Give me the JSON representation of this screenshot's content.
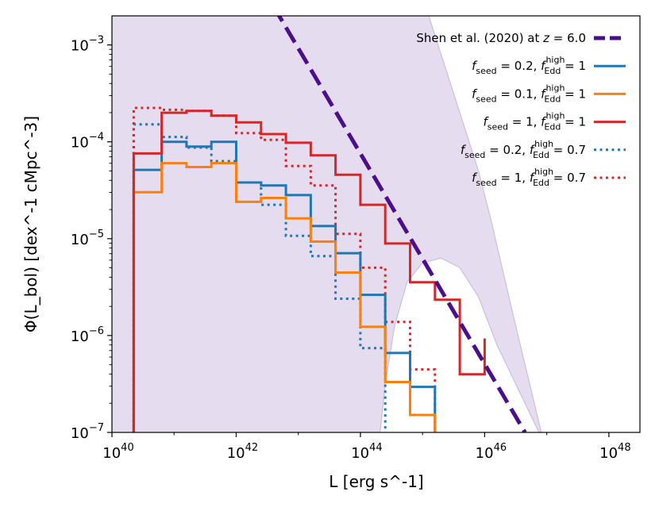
{
  "chart_data": {
    "type": "line",
    "xlabel": "L [erg s^-1]",
    "ylabel": "Φ(L_bol) [dex^-1 cMpc^-3]",
    "x_scale": "log10",
    "y_scale": "log10",
    "xlim_log10": [
      40,
      48.5
    ],
    "ylim_log10": [
      -7,
      -2.7
    ],
    "x_ticks": [
      {
        "value": 40,
        "base": "10",
        "exp": "40"
      },
      {
        "value": 42,
        "base": "10",
        "exp": "42"
      },
      {
        "value": 44,
        "base": "10",
        "exp": "44"
      },
      {
        "value": 46,
        "base": "10",
        "exp": "46"
      },
      {
        "value": 48,
        "base": "10",
        "exp": "48"
      }
    ],
    "y_ticks": [
      {
        "value": -7,
        "base": "10",
        "exp": "−7"
      },
      {
        "value": -6,
        "base": "10",
        "exp": "−6"
      },
      {
        "value": -5,
        "base": "10",
        "exp": "−5"
      },
      {
        "value": -4,
        "base": "10",
        "exp": "−4"
      },
      {
        "value": -3,
        "base": "10",
        "exp": "−3"
      }
    ],
    "shaded_band": {
      "name": "Shen et al. (2020) uncertainty",
      "color": "#e6dcef",
      "edge": "#cdbde0",
      "upper_log10": [
        [
          40,
          -2.6
        ],
        [
          45.05,
          -2.6
        ],
        [
          45.2,
          -2.9
        ],
        [
          45.5,
          -3.5
        ],
        [
          45.9,
          -4.3
        ],
        [
          46.1,
          -4.8
        ],
        [
          46.5,
          -5.9
        ],
        [
          46.95,
          -7.1
        ]
      ],
      "lower_log10": [
        [
          46.95,
          -7.1
        ],
        [
          46.2,
          -6.1
        ],
        [
          45.9,
          -5.6
        ],
        [
          45.6,
          -5.3
        ],
        [
          45.3,
          -5.2
        ],
        [
          45.0,
          -5.25
        ],
        [
          44.75,
          -5.45
        ],
        [
          44.55,
          -5.9
        ],
        [
          44.4,
          -6.5
        ],
        [
          44.3,
          -7.1
        ],
        [
          40,
          -7.1
        ]
      ]
    },
    "series": [
      {
        "name": "Shen et al. (2020) at z = 6.0",
        "color": "#4b0f8c",
        "style": "dashed",
        "kind": "line",
        "points": [
          [
            42.6,
            -2.6
          ],
          [
            46.65,
            -7.0
          ]
        ]
      },
      {
        "name": "f_seed = 0.2, f_Edd^high = 1",
        "color": "#1f77b4",
        "style": "solid",
        "kind": "step",
        "edges": [
          40.35,
          40.8,
          41.2,
          41.6,
          42.0,
          42.4,
          42.8,
          43.2,
          43.6,
          44.0,
          44.4,
          44.8,
          45.2
        ],
        "values": [
          -4.29,
          -4.0,
          -4.05,
          -4.0,
          -4.42,
          -4.45,
          -4.55,
          -4.87,
          -5.15,
          -5.58,
          -6.18,
          -6.53
        ]
      },
      {
        "name": "f_seed = 0.1, f_Edd^high = 1",
        "color": "#ff7f0e",
        "style": "solid",
        "kind": "step",
        "edges": [
          40.35,
          40.8,
          41.2,
          41.6,
          42.0,
          42.4,
          42.8,
          43.2,
          43.6,
          44.0,
          44.4,
          44.8,
          45.2
        ],
        "values": [
          -4.52,
          -4.22,
          -4.26,
          -4.22,
          -4.62,
          -4.58,
          -4.79,
          -5.03,
          -5.35,
          -5.91,
          -6.48,
          -6.82
        ]
      },
      {
        "name": "f_seed = 1, f_Edd^high = 1",
        "color": "#d62728",
        "style": "solid",
        "kind": "step",
        "edges": [
          40.35,
          40.8,
          41.2,
          41.6,
          42.0,
          42.4,
          42.8,
          43.2,
          43.6,
          44.0,
          44.4,
          44.8,
          45.2,
          45.6,
          46.0
        ],
        "values": [
          -4.12,
          -3.7,
          -3.68,
          -3.73,
          -3.8,
          -3.92,
          -4.01,
          -4.14,
          -4.34,
          -4.65,
          -5.05,
          -5.45,
          -5.63,
          -6.4,
          -6.03
        ]
      },
      {
        "name": "f_seed = 0.2, f_Edd^high = 0.7",
        "color": "#1f77b4",
        "style": "dotted",
        "kind": "step",
        "edges": [
          40.35,
          40.8,
          41.2,
          41.6,
          42.0,
          42.4,
          42.8,
          43.2,
          43.6,
          44.0,
          44.4
        ],
        "values": [
          -3.82,
          -3.95,
          -4.06,
          -4.2,
          -4.42,
          -4.65,
          -4.97,
          -5.18,
          -5.62,
          -6.13
        ]
      },
      {
        "name": "f_seed = 1, f_Edd^high = 0.7",
        "color": "#d62728",
        "style": "dotted",
        "kind": "step",
        "edges": [
          40.35,
          40.8,
          41.2,
          41.6,
          42.0,
          42.4,
          42.8,
          43.2,
          43.6,
          44.0,
          44.4,
          44.8,
          45.2
        ],
        "values": [
          -3.65,
          -3.67,
          -3.68,
          -3.73,
          -3.91,
          -3.98,
          -4.25,
          -4.45,
          -4.95,
          -5.3,
          -5.86,
          -6.35
        ]
      }
    ],
    "legend": {
      "position": "top-right",
      "entries": [
        {
          "series": 0,
          "parts": [
            {
              "t": "Shen et al. (2020) at "
            },
            {
              "t": "z",
              "i": true
            },
            {
              "t": " = 6.0"
            }
          ]
        },
        {
          "series": 1,
          "parts": [
            {
              "t": "f",
              "i": true
            },
            {
              "t": "seed",
              "sub": true
            },
            {
              "t": " = 0.2, "
            },
            {
              "t": "f",
              "i": true
            },
            {
              "t": "Edd",
              "sub": true,
              "sup": "high"
            },
            {
              "t": " = 1"
            }
          ]
        },
        {
          "series": 2,
          "parts": [
            {
              "t": "f",
              "i": true
            },
            {
              "t": "seed",
              "sub": true
            },
            {
              "t": " = 0.1, "
            },
            {
              "t": "f",
              "i": true
            },
            {
              "t": "Edd",
              "sub": true,
              "sup": "high"
            },
            {
              "t": " = 1"
            }
          ]
        },
        {
          "series": 3,
          "parts": [
            {
              "t": "f",
              "i": true
            },
            {
              "t": "seed",
              "sub": true
            },
            {
              "t": " = 1, "
            },
            {
              "t": "f",
              "i": true
            },
            {
              "t": "Edd",
              "sub": true,
              "sup": "high"
            },
            {
              "t": " = 1"
            }
          ]
        },
        {
          "series": 4,
          "parts": [
            {
              "t": "f",
              "i": true
            },
            {
              "t": "seed",
              "sub": true
            },
            {
              "t": " = 0.2, "
            },
            {
              "t": "f",
              "i": true
            },
            {
              "t": "Edd",
              "sub": true,
              "sup": "high"
            },
            {
              "t": " = 0.7"
            }
          ]
        },
        {
          "series": 5,
          "parts": [
            {
              "t": "f",
              "i": true
            },
            {
              "t": "seed",
              "sub": true
            },
            {
              "t": " = 1, "
            },
            {
              "t": "f",
              "i": true
            },
            {
              "t": "Edd",
              "sub": true,
              "sup": "high"
            },
            {
              "t": " = 0.7"
            }
          ]
        }
      ]
    }
  }
}
